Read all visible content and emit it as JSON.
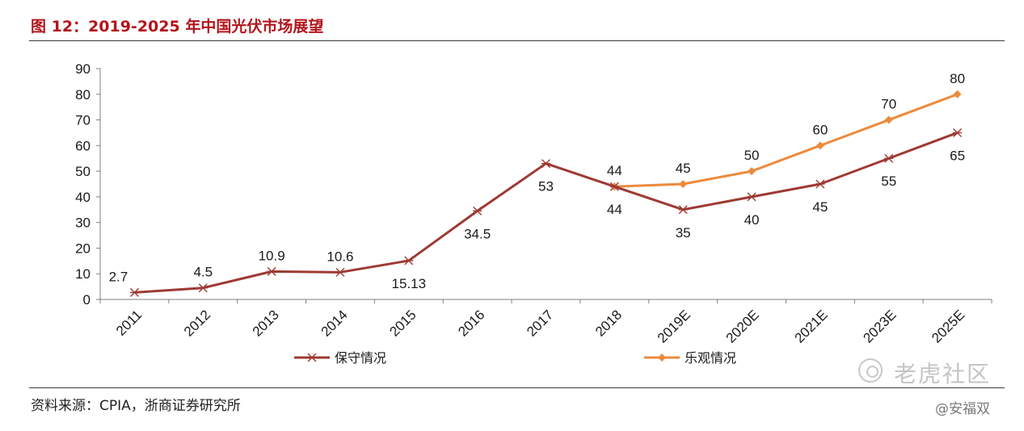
{
  "figure_title": "图 12：2019-2025 年中国光伏市场展望",
  "source": "资料来源：CPIA，浙商证券研究所",
  "watermark": "老虎社区",
  "author": "@安福双",
  "colors": {
    "title": "#b3151c",
    "conservative": "#9e3a33",
    "optimistic": "#ed8a3b",
    "axis": "#7f7f7f"
  },
  "chart_data": {
    "type": "line",
    "title": "",
    "xlabel": "",
    "ylabel": "",
    "ylim": [
      0,
      90
    ],
    "yticks": [
      0,
      10,
      20,
      30,
      40,
      50,
      60,
      70,
      80,
      90
    ],
    "grid": false,
    "legend_position": "bottom",
    "categories": [
      "2011",
      "2012",
      "2013",
      "2014",
      "2015",
      "2016",
      "2017",
      "2018",
      "2019E",
      "2020E",
      "2021E",
      "2023E",
      "2025E"
    ],
    "series": [
      {
        "name": "保守情况",
        "marker": "asterisk",
        "values": [
          2.7,
          4.5,
          10.9,
          10.6,
          15.13,
          34.5,
          53,
          44,
          35,
          40,
          45,
          55,
          65
        ],
        "labels": [
          "2.7",
          "4.5",
          "10.9",
          "10.6",
          "15.13",
          "34.5",
          "53",
          "44",
          "35",
          "40",
          "45",
          "55",
          "65"
        ],
        "label_side": [
          "above",
          "above",
          "above",
          "above",
          "below",
          "below",
          "below",
          "below",
          "below",
          "below",
          "below",
          "below",
          "below"
        ]
      },
      {
        "name": "乐观情况",
        "marker": "diamond",
        "values": [
          null,
          null,
          null,
          null,
          null,
          null,
          null,
          44,
          45,
          50,
          60,
          70,
          80
        ],
        "labels": [
          null,
          null,
          null,
          null,
          null,
          null,
          null,
          "44",
          "45",
          "50",
          "60",
          "70",
          "80"
        ],
        "label_side": [
          null,
          null,
          null,
          null,
          null,
          null,
          null,
          "above",
          "above",
          "above",
          "above",
          "above",
          "above"
        ]
      }
    ]
  }
}
